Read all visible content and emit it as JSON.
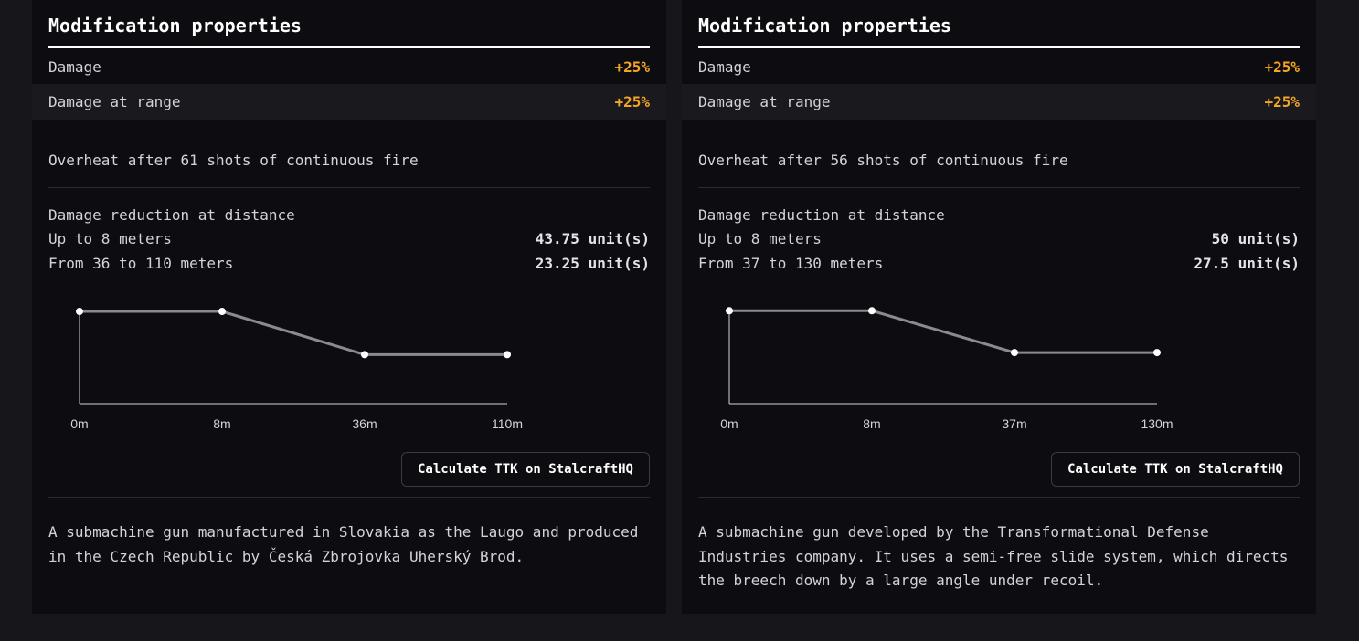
{
  "cards": [
    {
      "section_title": "Modification properties",
      "properties": [
        {
          "name": "Damage",
          "value": "+25%"
        },
        {
          "name": "Damage at range",
          "value": "+25%"
        }
      ],
      "overheat": "Overheat after 61 shots of continuous fire",
      "damage_reduction_title": "Damage reduction at distance",
      "distances": [
        {
          "label": "Up to 8 meters",
          "value": "43.75 unit(s)"
        },
        {
          "label": "From 36 to 110 meters",
          "value": "23.25 unit(s)"
        }
      ],
      "ttk_button": "Calculate TTK on StalcraftHQ",
      "description": "A submachine gun manufactured in Slovakia as the Laugo and produced in the Czech Republic by Česká Zbrojovka Uherský Brod."
    },
    {
      "section_title": "Modification properties",
      "properties": [
        {
          "name": "Damage",
          "value": "+25%"
        },
        {
          "name": "Damage at range",
          "value": "+25%"
        }
      ],
      "overheat": "Overheat after 56 shots of continuous fire",
      "damage_reduction_title": "Damage reduction at distance",
      "distances": [
        {
          "label": "Up to 8 meters",
          "value": "50 unit(s)"
        },
        {
          "label": "From 37 to 130 meters",
          "value": "27.5 unit(s)"
        }
      ],
      "ttk_button": "Calculate TTK on StalcraftHQ",
      "description": "A submachine gun developed by the Transformational Defense Industries company. It uses a semi-free slide system, which directs the breech down by a large angle under recoil."
    }
  ],
  "chart_data": [
    {
      "type": "line",
      "x": [
        0,
        8,
        36,
        110
      ],
      "categories": [
        "0m",
        "8m",
        "36m",
        "110m"
      ],
      "values": [
        43.75,
        43.75,
        23.25,
        23.25
      ],
      "ylim": [
        0,
        52
      ],
      "grid": false,
      "colors": {
        "line": "#8a8a8f",
        "point": "#ffffff",
        "axis": "#d4d4d8"
      }
    },
    {
      "type": "line",
      "x": [
        0,
        8,
        37,
        130
      ],
      "categories": [
        "0m",
        "8m",
        "37m",
        "130m"
      ],
      "values": [
        50,
        50,
        27.5,
        27.5
      ],
      "ylim": [
        0,
        59
      ],
      "grid": false,
      "colors": {
        "line": "#8a8a8f",
        "point": "#ffffff",
        "axis": "#d4d4d8"
      }
    }
  ]
}
